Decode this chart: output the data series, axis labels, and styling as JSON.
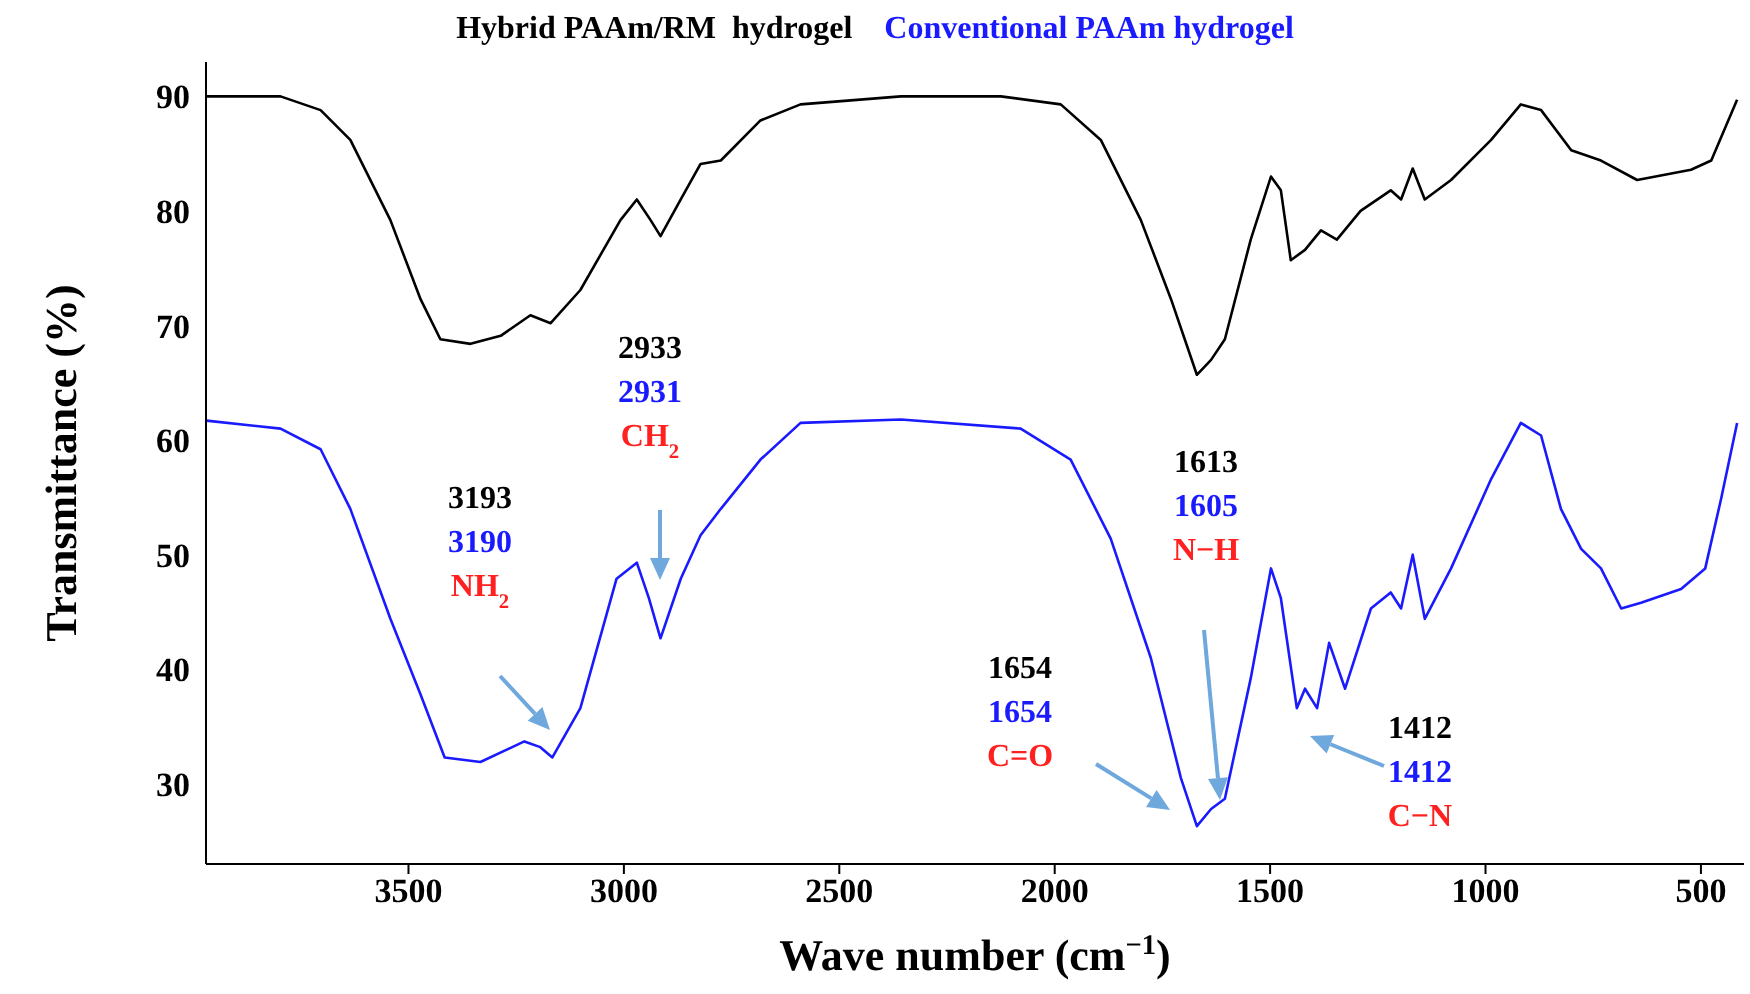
{
  "chart_data": {
    "type": "line",
    "xlabel": "Wave number  (cm$^{−1}$)",
    "ylabel": "Transmittance  (%)",
    "legend": "top",
    "marker": "none",
    "grid": false,
    "xlim": [
      3970,
      400
    ],
    "xticks": [
      3500,
      3000,
      2500,
      2000,
      1500,
      1000,
      500
    ],
    "ylim": [
      23,
      93
    ],
    "yticks": [
      30,
      40,
      50,
      60,
      70,
      80,
      90
    ],
    "series": [
      {
        "name": "Hybrid PAAm/RM  hydrogel",
        "color": "#000000",
        "x": [
          3969,
          3797,
          3704,
          3635,
          3542,
          3472,
          3426,
          3356,
          3286,
          3217,
          3170,
          3101,
          3008,
          2970,
          2938,
          2915,
          2868,
          2822,
          2775,
          2683,
          2590,
          2357,
          2125,
          1986,
          1893,
          1800,
          1730,
          1670,
          1637,
          1605,
          1545,
          1498,
          1475,
          1452,
          1419,
          1382,
          1345,
          1290,
          1220,
          1196,
          1169,
          1141,
          1080,
          987,
          918,
          871,
          801,
          732,
          648,
          523,
          476,
          416
        ],
        "values": [
          90,
          90,
          88.8,
          86.2,
          79.2,
          72.3,
          68.8,
          68.4,
          69.1,
          70.9,
          70.2,
          73.1,
          79.2,
          81,
          79.2,
          77.8,
          81,
          84.1,
          84.4,
          87.9,
          89.3,
          90,
          90,
          89.3,
          86.2,
          79.2,
          72.3,
          65.7,
          67,
          68.8,
          77.5,
          83,
          81.8,
          75.7,
          76.6,
          78.3,
          77.5,
          80,
          81.8,
          81,
          83.7,
          81,
          82.7,
          86.2,
          89.3,
          88.8,
          85.3,
          84.4,
          82.7,
          83.6,
          84.4,
          89.7
        ]
      },
      {
        "name": "Conventional PAAm hydrogel",
        "color": "#1a1aff",
        "x": [
          3969,
          3797,
          3704,
          3635,
          3542,
          3472,
          3416,
          3333,
          3231,
          3194,
          3166,
          3101,
          3017,
          2970,
          2942,
          2915,
          2868,
          2822,
          2775,
          2683,
          2590,
          2357,
          2079,
          1963,
          1870,
          1777,
          1707,
          1670,
          1637,
          1605,
          1545,
          1498,
          1475,
          1438,
          1419,
          1391,
          1363,
          1326,
          1266,
          1220,
          1196,
          1169,
          1141,
          1080,
          987,
          918,
          871,
          825,
          778,
          732,
          685,
          639,
          546,
          490,
          453,
          416
        ],
        "values": [
          61.7,
          61,
          59.2,
          54,
          44.4,
          37.8,
          32.3,
          31.9,
          33.7,
          33.2,
          32.3,
          36.6,
          47.9,
          49.3,
          46.2,
          42.7,
          47.9,
          51.7,
          54,
          58.3,
          61.5,
          61.8,
          61,
          58.3,
          51.4,
          41,
          30.5,
          26.3,
          27.8,
          28.7,
          39.2,
          48.8,
          46.2,
          36.6,
          38.3,
          36.6,
          42.3,
          38.3,
          45.3,
          46.7,
          45.3,
          50,
          44.4,
          48.8,
          56.6,
          61.5,
          60.4,
          54,
          50.5,
          48.8,
          45.3,
          45.8,
          47,
          48.8,
          54.9,
          61.5
        ]
      }
    ],
    "annotations": [
      "3193\n3190\nNH$_{2}$",
      "2933\n2931\nCH$_{2}$",
      "1654\n1654\nC=O",
      "1613\n1605\nN−H",
      "1412\n1412\nC−N"
    ]
  }
}
